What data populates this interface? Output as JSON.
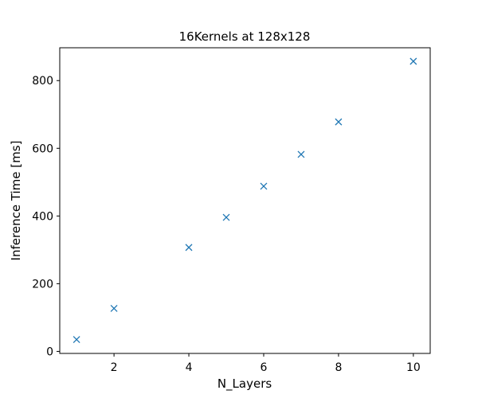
{
  "chart_data": {
    "type": "scatter",
    "title": "16Kernels at 128x128",
    "xlabel": "N_Layers",
    "ylabel": "Inference Time [ms]",
    "xlim": [
      0.55,
      10.45
    ],
    "ylim": [
      -6,
      897
    ],
    "xticks": [
      2,
      4,
      6,
      8,
      10
    ],
    "yticks": [
      0,
      200,
      400,
      600,
      800
    ],
    "grid": false,
    "marker": "x",
    "color": "#1f77b4",
    "series": [
      {
        "x": [
          1,
          2,
          4,
          5,
          6,
          7,
          8,
          10
        ],
        "y": [
          35,
          127,
          307,
          396,
          488,
          582,
          678,
          857
        ]
      }
    ]
  }
}
